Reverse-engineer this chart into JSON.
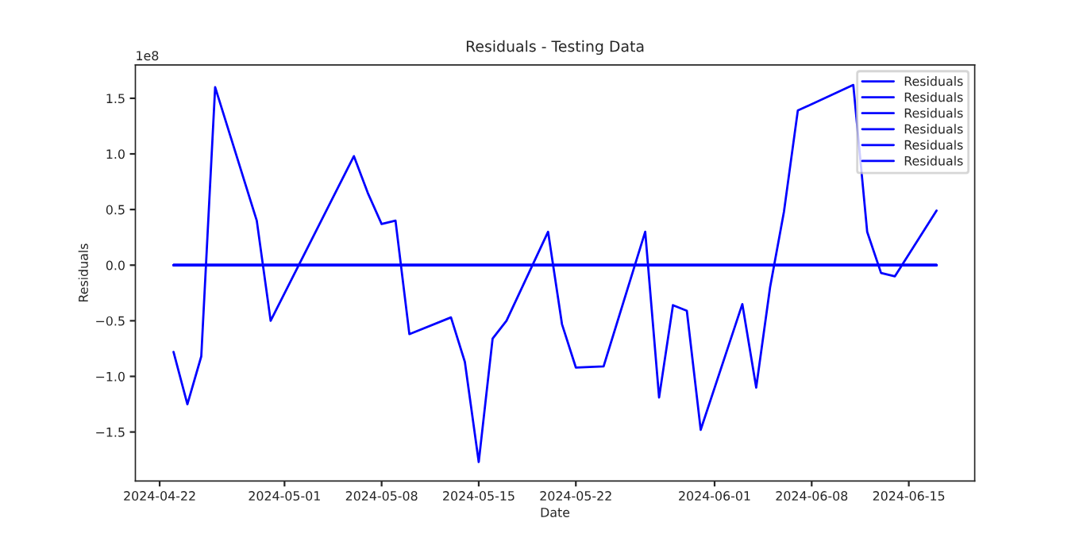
{
  "chart_data": {
    "type": "line",
    "title": "Residuals - Testing Data",
    "xlabel": "Date",
    "ylabel": "Residuals",
    "annotations": [
      "1e8"
    ],
    "xlim": [
      "2024-04-20T06:00",
      "2024-06-19T18:00"
    ],
    "xticks": [
      {
        "value": "2024-04-22",
        "label": "2024-04-22"
      },
      {
        "value": "2024-05-01",
        "label": "2024-05-01"
      },
      {
        "value": "2024-05-08",
        "label": "2024-05-08"
      },
      {
        "value": "2024-05-15",
        "label": "2024-05-15"
      },
      {
        "value": "2024-05-22",
        "label": "2024-05-22"
      },
      {
        "value": "2024-06-01",
        "label": "2024-06-01"
      },
      {
        "value": "2024-06-08",
        "label": "2024-06-08"
      },
      {
        "value": "2024-06-15",
        "label": "2024-06-15"
      }
    ],
    "ylim": [
      -1.94,
      1.8
    ],
    "yticks": [
      {
        "value": -1.5,
        "label": "−1.5"
      },
      {
        "value": -1.0,
        "label": "−1.0"
      },
      {
        "value": -0.5,
        "label": "−0.5"
      },
      {
        "value": 0,
        "label": "0.0"
      },
      {
        "value": 0.5,
        "label": "0.5"
      },
      {
        "value": 1.0,
        "label": "1.0"
      },
      {
        "value": 1.5,
        "label": "1.5"
      }
    ],
    "grid": false,
    "legend": "top right",
    "line_style": "solid",
    "marker": "none",
    "series": [
      {
        "name": "Residuals",
        "color": "#0000ff",
        "x": [
          "2024-04-23",
          "2024-04-24",
          "2024-04-25",
          "2024-04-26",
          "2024-04-29",
          "2024-04-30",
          "2024-05-06",
          "2024-05-07",
          "2024-05-08",
          "2024-05-09",
          "2024-05-10",
          "2024-05-13",
          "2024-05-14",
          "2024-05-15",
          "2024-05-16",
          "2024-05-17",
          "2024-05-20",
          "2024-05-21",
          "2024-05-22",
          "2024-05-24",
          "2024-05-27",
          "2024-05-28",
          "2024-05-29",
          "2024-05-30",
          "2024-05-31",
          "2024-06-03",
          "2024-06-04",
          "2024-06-05",
          "2024-06-06",
          "2024-06-07",
          "2024-06-11",
          "2024-06-12",
          "2024-06-13",
          "2024-06-14",
          "2024-06-17"
        ],
        "values": [
          -0.78,
          -1.25,
          -0.82,
          1.6,
          0.4,
          -0.5,
          0.98,
          0.65,
          0.37,
          0.4,
          -0.62,
          -0.47,
          -0.87,
          -1.77,
          -0.66,
          -0.5,
          0.3,
          -0.53,
          -0.92,
          -0.91,
          0.3,
          -1.19,
          -0.36,
          -0.41,
          -1.48,
          -0.35,
          -1.1,
          -0.2,
          0.48,
          1.39,
          1.62,
          0.3,
          -0.07,
          -0.1,
          0.49
        ]
      },
      {
        "name": "Residuals",
        "color": "#0000ff",
        "x": [
          "2024-04-23",
          "2024-06-17"
        ],
        "values": [
          0,
          0
        ]
      },
      {
        "name": "Residuals",
        "color": "#0000ff",
        "x": [
          "2024-04-23",
          "2024-06-17"
        ],
        "values": [
          0,
          0
        ]
      },
      {
        "name": "Residuals",
        "color": "#0000ff",
        "x": [
          "2024-04-23",
          "2024-06-17"
        ],
        "values": [
          0,
          0
        ]
      },
      {
        "name": "Residuals",
        "color": "#0000ff",
        "x": [
          "2024-04-23",
          "2024-06-17"
        ],
        "values": [
          0,
          0
        ]
      },
      {
        "name": "Residuals",
        "color": "#0000ff",
        "x": [
          "2024-04-23",
          "2024-06-17"
        ],
        "values": [
          0,
          0
        ]
      }
    ]
  }
}
